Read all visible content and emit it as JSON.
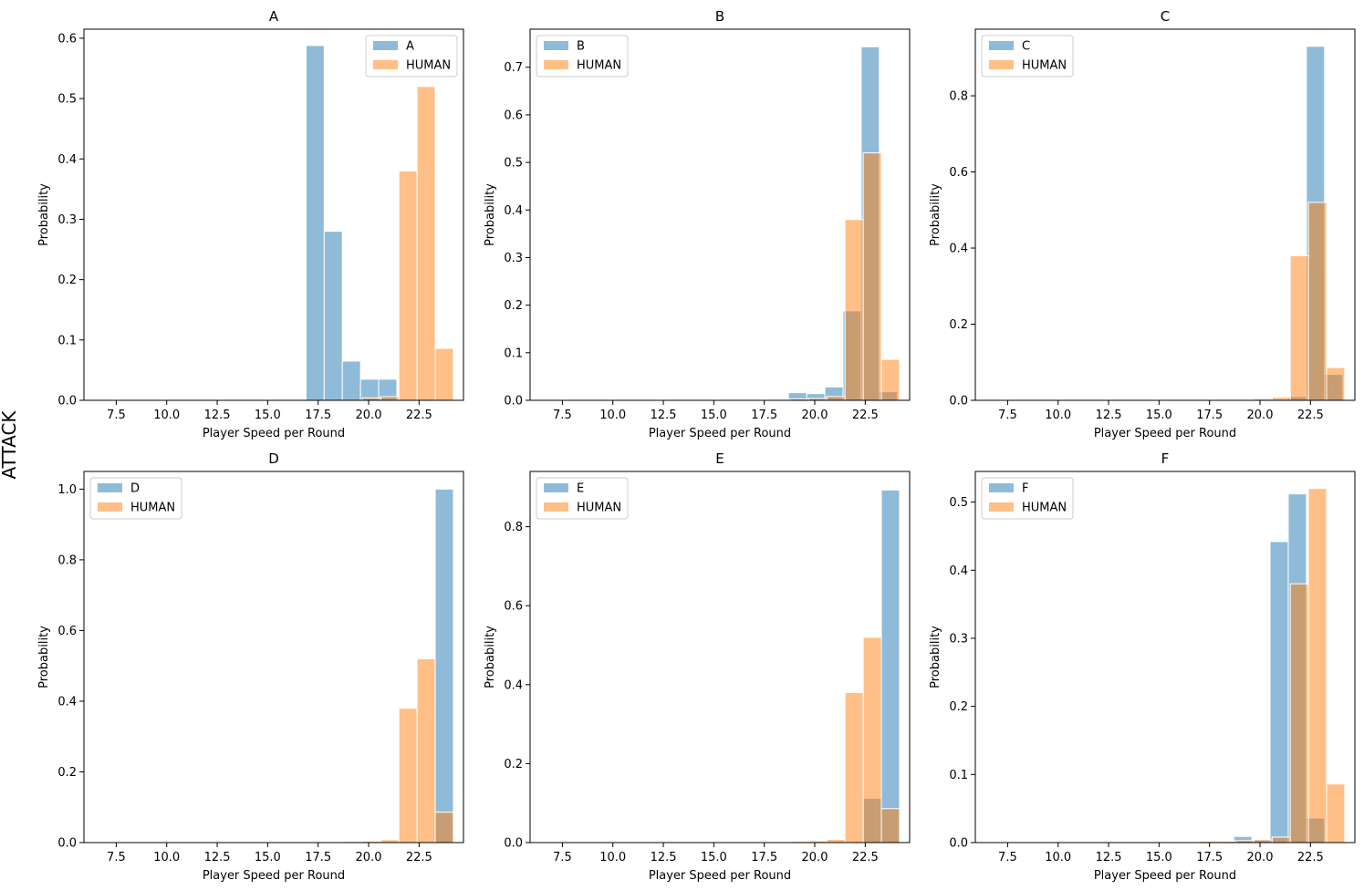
{
  "figure": {
    "row_label": "ATTACK",
    "colors": {
      "model": "#1f77b4",
      "human": "#ff7f0e",
      "edge": "#ffffff",
      "axes": "#000000"
    }
  },
  "chart_data": [
    {
      "type": "bar",
      "title": "A",
      "xlabel": "Player Speed per Round",
      "ylabel": "Probability",
      "xlim": [
        5.9,
        24.7
      ],
      "ylim": [
        0,
        0.615
      ],
      "xticks": [
        "7.5",
        "10.0",
        "12.5",
        "15.0",
        "17.5",
        "20.0",
        "22.5"
      ],
      "yticks": [
        "0.0",
        "0.1",
        "0.2",
        "0.3",
        "0.4",
        "0.5",
        "0.6"
      ],
      "legend": {
        "position": "top-right",
        "entries": [
          "A",
          "HUMAN"
        ]
      },
      "series": [
        {
          "name": "A",
          "bins": [
            [
              16.9,
              17.8,
              0.588
            ],
            [
              17.8,
              18.7,
              0.28
            ],
            [
              18.7,
              19.6,
              0.065
            ],
            [
              19.6,
              20.5,
              0.035
            ],
            [
              20.5,
              21.4,
              0.035
            ]
          ]
        },
        {
          "name": "HUMAN",
          "bins": [
            [
              19.7,
              20.6,
              0.004
            ],
            [
              20.6,
              21.5,
              0.006
            ],
            [
              21.5,
              22.4,
              0.38
            ],
            [
              22.4,
              23.3,
              0.52
            ],
            [
              23.3,
              24.2,
              0.086
            ]
          ]
        }
      ]
    },
    {
      "type": "bar",
      "title": "B",
      "xlabel": "Player Speed per Round",
      "ylabel": "Probability",
      "xlim": [
        5.9,
        24.7
      ],
      "ylim": [
        0,
        0.78
      ],
      "xticks": [
        "7.5",
        "10.0",
        "12.5",
        "15.0",
        "17.5",
        "20.0",
        "22.5"
      ],
      "yticks": [
        "0.0",
        "0.1",
        "0.2",
        "0.3",
        "0.4",
        "0.5",
        "0.6",
        "0.7"
      ],
      "legend": {
        "position": "top-left",
        "entries": [
          "B",
          "HUMAN"
        ]
      },
      "series": [
        {
          "name": "B",
          "bins": [
            [
              18.7,
              19.6,
              0.016
            ],
            [
              19.6,
              20.5,
              0.014
            ],
            [
              20.5,
              21.4,
              0.028
            ],
            [
              21.4,
              22.3,
              0.188
            ],
            [
              22.3,
              23.2,
              0.743
            ],
            [
              23.2,
              24.1,
              0.018
            ]
          ]
        },
        {
          "name": "HUMAN",
          "bins": [
            [
              17.9,
              18.8,
              0.002
            ],
            [
              18.8,
              19.7,
              0.003
            ],
            [
              19.7,
              20.6,
              0.004
            ],
            [
              20.6,
              21.5,
              0.008
            ],
            [
              21.5,
              22.4,
              0.38
            ],
            [
              22.4,
              23.3,
              0.52
            ],
            [
              23.3,
              24.2,
              0.086
            ]
          ]
        }
      ]
    },
    {
      "type": "bar",
      "title": "C",
      "xlabel": "Player Speed per Round",
      "ylabel": "Probability",
      "xlim": [
        5.9,
        24.7
      ],
      "ylim": [
        0,
        0.975
      ],
      "xticks": [
        "7.5",
        "10.0",
        "12.5",
        "15.0",
        "17.5",
        "20.0",
        "22.5"
      ],
      "yticks": [
        "0.0",
        "0.2",
        "0.4",
        "0.6",
        "0.8"
      ],
      "legend": {
        "position": "top-left",
        "entries": [
          "C",
          "HUMAN"
        ]
      },
      "series": [
        {
          "name": "C",
          "bins": [
            [
              21.4,
              22.3,
              0.01
            ],
            [
              22.3,
              23.2,
              0.93
            ],
            [
              23.2,
              24.1,
              0.068
            ]
          ]
        },
        {
          "name": "HUMAN",
          "bins": [
            [
              17.2,
              18.1,
              0.002
            ],
            [
              19.7,
              20.6,
              0.004
            ],
            [
              20.6,
              21.5,
              0.008
            ],
            [
              21.5,
              22.4,
              0.38
            ],
            [
              22.4,
              23.3,
              0.52
            ],
            [
              23.3,
              24.2,
              0.086
            ]
          ]
        }
      ]
    },
    {
      "type": "bar",
      "title": "D",
      "xlabel": "Player Speed per Round",
      "ylabel": "Probability",
      "xlim": [
        5.9,
        24.7
      ],
      "ylim": [
        0,
        1.05
      ],
      "xticks": [
        "7.5",
        "10.0",
        "12.5",
        "15.0",
        "17.5",
        "20.0",
        "22.5"
      ],
      "yticks": [
        "0.0",
        "0.2",
        "0.4",
        "0.6",
        "0.8",
        "1.0"
      ],
      "legend": {
        "position": "top-left",
        "entries": [
          "D",
          "HUMAN"
        ]
      },
      "series": [
        {
          "name": "D",
          "bins": [
            [
              23.3,
              24.2,
              1.0
            ]
          ]
        },
        {
          "name": "HUMAN",
          "bins": [
            [
              16.1,
              17.0,
              0.002
            ],
            [
              17.0,
              17.9,
              0.002
            ],
            [
              17.9,
              18.8,
              0.002
            ],
            [
              18.8,
              19.7,
              0.003
            ],
            [
              19.7,
              20.6,
              0.004
            ],
            [
              20.6,
              21.5,
              0.008
            ],
            [
              21.5,
              22.4,
              0.38
            ],
            [
              22.4,
              23.3,
              0.52
            ],
            [
              23.3,
              24.2,
              0.086
            ]
          ]
        }
      ]
    },
    {
      "type": "bar",
      "title": "E",
      "xlabel": "Player Speed per Round",
      "ylabel": "Probability",
      "xlim": [
        5.9,
        24.7
      ],
      "ylim": [
        0,
        0.94
      ],
      "xticks": [
        "7.5",
        "10.0",
        "12.5",
        "15.0",
        "17.5",
        "20.0",
        "22.5"
      ],
      "yticks": [
        "0.0",
        "0.2",
        "0.4",
        "0.6",
        "0.8"
      ],
      "legend": {
        "position": "top-left",
        "entries": [
          "E",
          "HUMAN"
        ]
      },
      "series": [
        {
          "name": "E",
          "bins": [
            [
              22.4,
              23.3,
              0.112
            ],
            [
              23.3,
              24.2,
              0.893
            ]
          ]
        },
        {
          "name": "HUMAN",
          "bins": [
            [
              16.1,
              17.0,
              0.002
            ],
            [
              17.0,
              17.9,
              0.002
            ],
            [
              17.9,
              18.8,
              0.002
            ],
            [
              18.8,
              19.7,
              0.003
            ],
            [
              19.7,
              20.6,
              0.004
            ],
            [
              20.6,
              21.5,
              0.008
            ],
            [
              21.5,
              22.4,
              0.38
            ],
            [
              22.4,
              23.3,
              0.52
            ],
            [
              23.3,
              24.2,
              0.086
            ]
          ]
        }
      ]
    },
    {
      "type": "bar",
      "title": "F",
      "xlabel": "Player Speed per Round",
      "ylabel": "Probability",
      "xlim": [
        5.9,
        24.7
      ],
      "ylim": [
        0,
        0.545
      ],
      "xticks": [
        "7.5",
        "10.0",
        "12.5",
        "15.0",
        "17.5",
        "20.0",
        "22.5"
      ],
      "yticks": [
        "0.0",
        "0.1",
        "0.2",
        "0.3",
        "0.4",
        "0.5"
      ],
      "legend": {
        "position": "top-left",
        "entries": [
          "F",
          "HUMAN"
        ]
      },
      "series": [
        {
          "name": "F",
          "bins": [
            [
              18.7,
              19.6,
              0.009
            ],
            [
              19.6,
              20.5,
              0.005
            ],
            [
              20.5,
              21.4,
              0.442
            ],
            [
              21.4,
              22.3,
              0.512
            ],
            [
              22.3,
              23.2,
              0.036
            ]
          ]
        },
        {
          "name": "HUMAN",
          "bins": [
            [
              6.5,
              7.4,
              0.001
            ],
            [
              9.1,
              10.0,
              0.001
            ],
            [
              11.8,
              12.7,
              0.001
            ],
            [
              13.5,
              14.4,
              0.001
            ],
            [
              15.2,
              16.1,
              0.001
            ],
            [
              16.1,
              17.0,
              0.001
            ],
            [
              17.0,
              17.9,
              0.002
            ],
            [
              17.9,
              18.8,
              0.002
            ],
            [
              18.8,
              19.7,
              0.003
            ],
            [
              19.7,
              20.6,
              0.004
            ],
            [
              20.6,
              21.5,
              0.008
            ],
            [
              21.5,
              22.4,
              0.38
            ],
            [
              22.4,
              23.3,
              0.52
            ],
            [
              23.3,
              24.2,
              0.086
            ]
          ]
        }
      ]
    }
  ]
}
